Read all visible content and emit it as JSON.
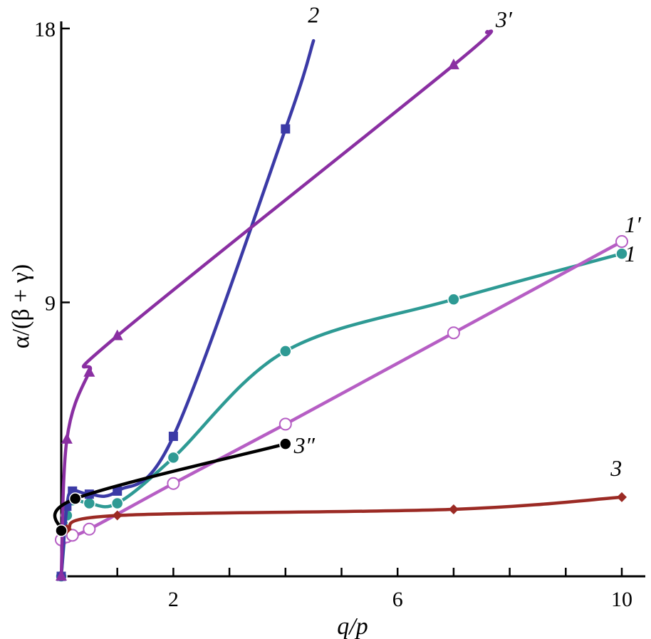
{
  "chart_data": {
    "type": "line",
    "xlabel": "q/p",
    "ylabel": "α/(β + γ)",
    "xlim": [
      0,
      10.4
    ],
    "ylim": [
      0,
      18
    ],
    "x_ticks": [
      0,
      1,
      2,
      3,
      4,
      5,
      6,
      7,
      8,
      9,
      10
    ],
    "x_tick_labels": [
      {
        "value": 2,
        "label": "2"
      },
      {
        "value": 6,
        "label": "6"
      },
      {
        "value": 10,
        "label": "10"
      }
    ],
    "y_ticks": [
      {
        "value": 9,
        "label": "9"
      },
      {
        "value": 18,
        "label": "18"
      }
    ],
    "grid": false,
    "series": [
      {
        "name": "1",
        "color": "#2e9a94",
        "marker": "circle-filled",
        "x": [
          0,
          0.1,
          0.2,
          0.5,
          1,
          2,
          4,
          7,
          10
        ],
        "y": [
          0,
          2.0,
          2.5,
          2.4,
          2.4,
          3.9,
          7.4,
          9.1,
          10.6
        ],
        "label_at": [
          10.05,
          10.35
        ]
      },
      {
        "name": "1′",
        "color": "#b65ec4",
        "marker": "circle-open",
        "x": [
          0,
          0.1,
          0.2,
          0.5,
          2,
          4,
          7,
          10
        ],
        "y": [
          1.2,
          1.3,
          1.35,
          1.55,
          3.05,
          5.0,
          8.0,
          11.0
        ],
        "label_at": [
          10.05,
          11.3
        ]
      },
      {
        "name": "2",
        "color": "#3b3aa6",
        "marker": "square",
        "x": [
          0,
          0.1,
          0.2,
          0.5,
          1,
          2,
          4,
          4.5
        ],
        "y": [
          0,
          2.3,
          2.8,
          2.7,
          2.8,
          4.6,
          14.7,
          17.6
        ],
        "label_at": [
          4.4,
          18.2
        ]
      },
      {
        "name": "3",
        "color": "#9b2a24",
        "marker": "diamond",
        "x": [
          0,
          0.1,
          1,
          7,
          10
        ],
        "y": [
          1.5,
          1.55,
          2.0,
          2.2,
          2.6
        ],
        "label_at": [
          9.8,
          3.3
        ]
      },
      {
        "name": "3′",
        "color": "#8a2fa2",
        "marker": "triangle",
        "x": [
          0,
          0.1,
          0.5,
          1,
          7,
          7.6
        ],
        "y": [
          0,
          4.5,
          6.7,
          7.9,
          16.8,
          17.9
        ],
        "label_at": [
          7.75,
          18.05
        ]
      },
      {
        "name": "3″",
        "color": "#000000",
        "marker": "circle-filled",
        "x": [
          0,
          0.25,
          4
        ],
        "y": [
          1.5,
          2.55,
          4.35
        ],
        "label_at": [
          4.15,
          4.05
        ]
      }
    ]
  }
}
